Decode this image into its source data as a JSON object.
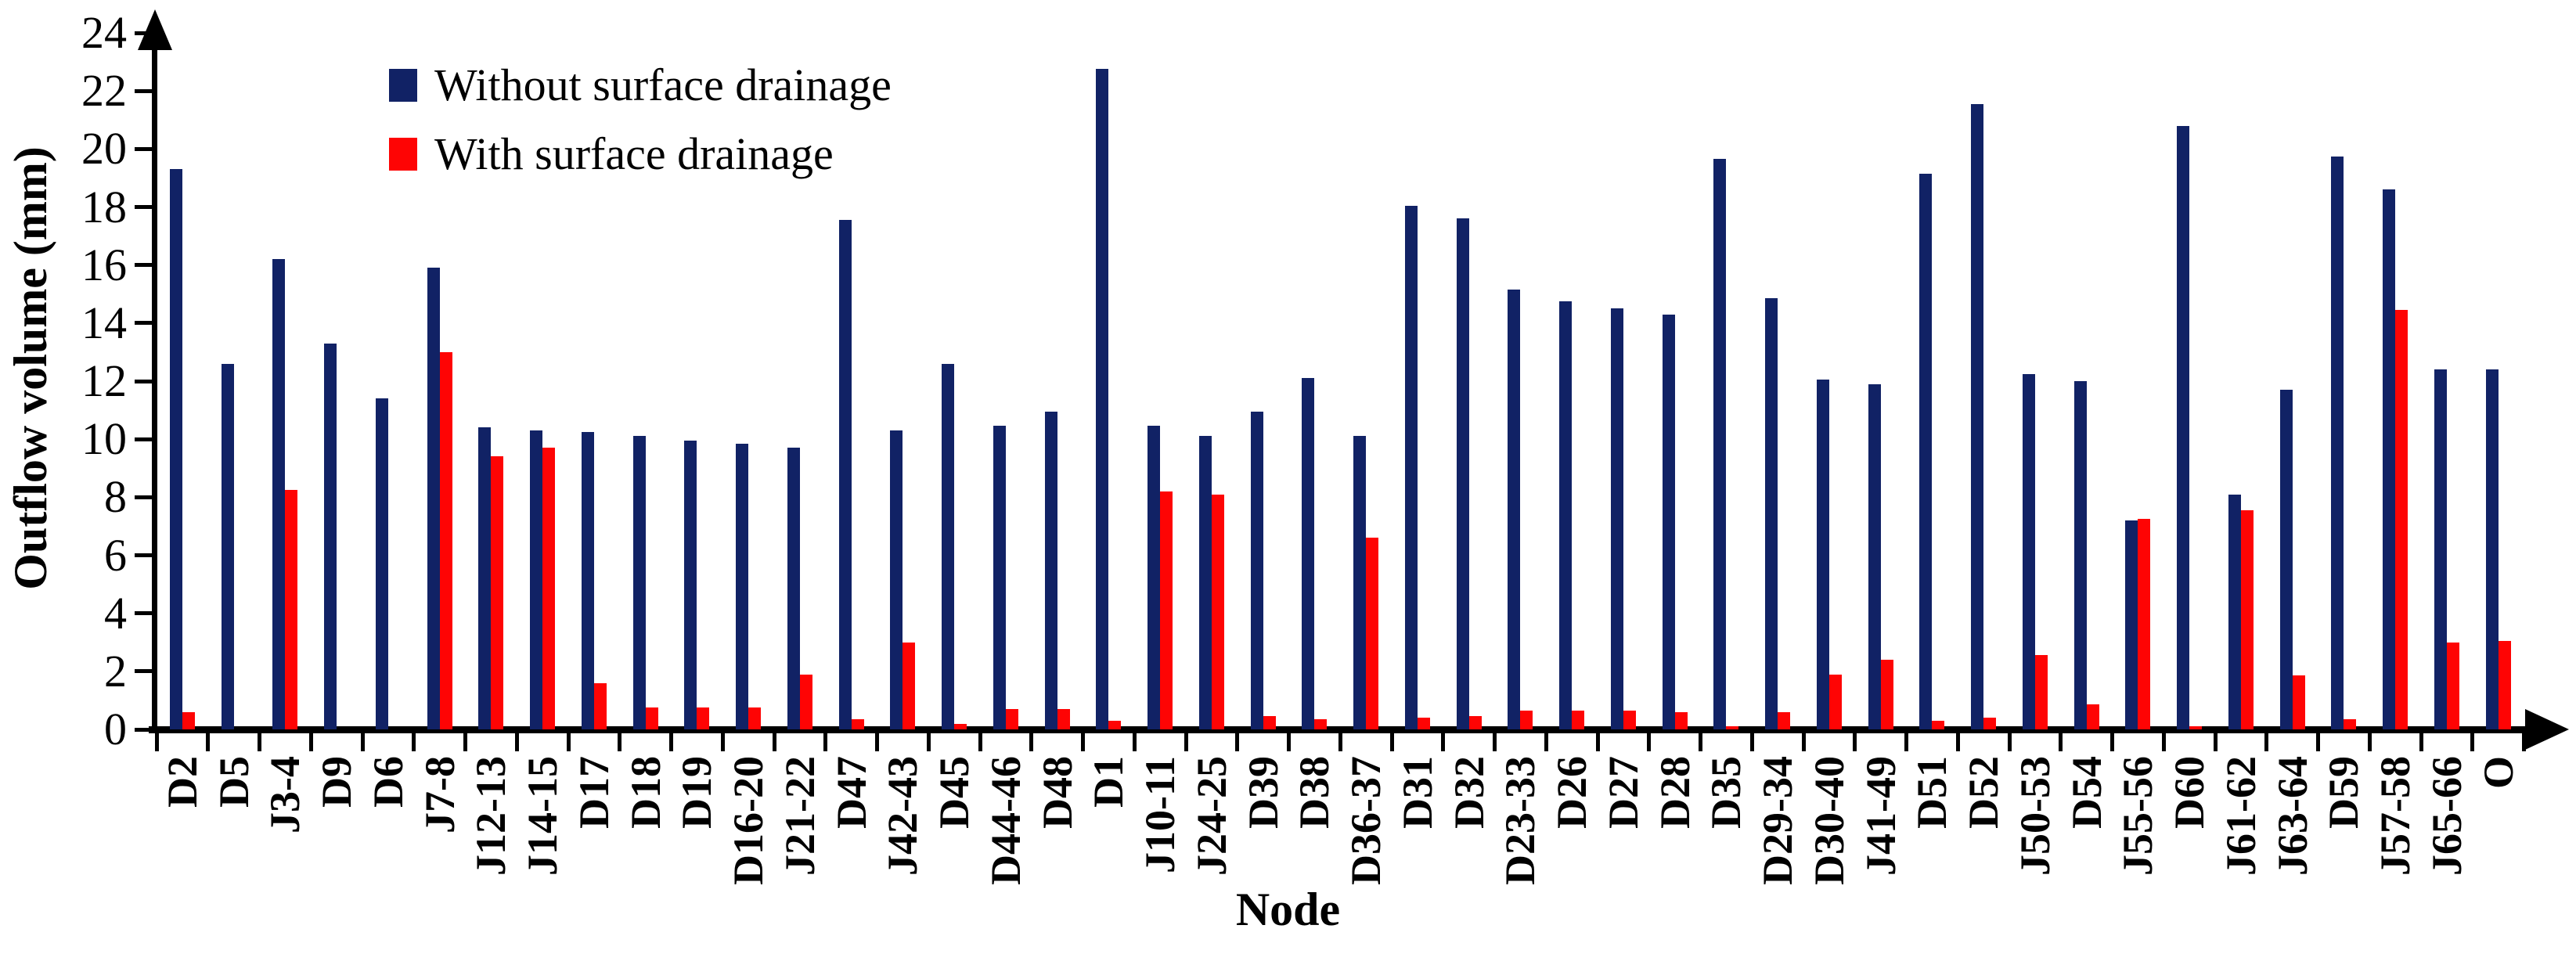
{
  "chart_data": {
    "type": "bar",
    "title": "",
    "xlabel": "Node",
    "ylabel": "Outflow volume (mm)",
    "ylim": [
      0,
      24
    ],
    "yticks": [
      0,
      2,
      4,
      6,
      8,
      10,
      12,
      14,
      16,
      18,
      20,
      22,
      24
    ],
    "grid": false,
    "legend_position": "top-left-inside",
    "categories": [
      "D2",
      "D5",
      "J3-4",
      "D9",
      "D6",
      "J7-8",
      "J12-13",
      "J14-15",
      "D17",
      "D18",
      "D19",
      "D16-20",
      "J21-22",
      "D47",
      "J42-43",
      "D45",
      "D44-46",
      "D48",
      "D1",
      "J10-11",
      "J24-25",
      "D39",
      "D38",
      "D36-37",
      "D31",
      "D32",
      "D23-33",
      "D26",
      "D27",
      "D28",
      "D35",
      "D29-34",
      "D30-40",
      "J41-49",
      "D51",
      "D52",
      "J50-53",
      "D54",
      "J55-56",
      "D60",
      "J61-62",
      "J63-64",
      "D59",
      "J57-58",
      "J65-66",
      "O"
    ],
    "series": [
      {
        "name": "Without surface drainage",
        "color": "#112265",
        "values": [
          19.3,
          12.6,
          16.2,
          13.3,
          11.4,
          15.9,
          10.4,
          10.3,
          10.25,
          10.1,
          9.95,
          9.85,
          9.7,
          17.55,
          10.3,
          12.6,
          10.45,
          10.95,
          22.75,
          10.45,
          10.1,
          10.95,
          12.1,
          10.1,
          18.05,
          17.6,
          15.15,
          14.75,
          14.5,
          14.3,
          19.65,
          14.85,
          12.05,
          11.9,
          19.15,
          21.55,
          12.25,
          12.0,
          7.2,
          20.8,
          8.1,
          11.7,
          19.75,
          18.6,
          12.4,
          12.4
        ]
      },
      {
        "name": "With surface drainage",
        "color": "#fe0404",
        "values": [
          0.6,
          0,
          8.25,
          0,
          0,
          13.0,
          9.4,
          9.7,
          1.6,
          0.75,
          0.75,
          0.75,
          1.9,
          0.35,
          3.0,
          0.2,
          0.7,
          0.7,
          0.3,
          8.2,
          8.1,
          0.45,
          0.35,
          6.6,
          0.4,
          0.45,
          0.65,
          0.65,
          0.65,
          0.6,
          0.1,
          0.6,
          1.9,
          2.4,
          0.3,
          0.4,
          2.55,
          0.85,
          7.25,
          0.1,
          7.55,
          1.85,
          0.35,
          14.45,
          3.0,
          3.05
        ]
      }
    ]
  },
  "colors": {
    "axis": "#000000",
    "background": "#ffffff"
  }
}
